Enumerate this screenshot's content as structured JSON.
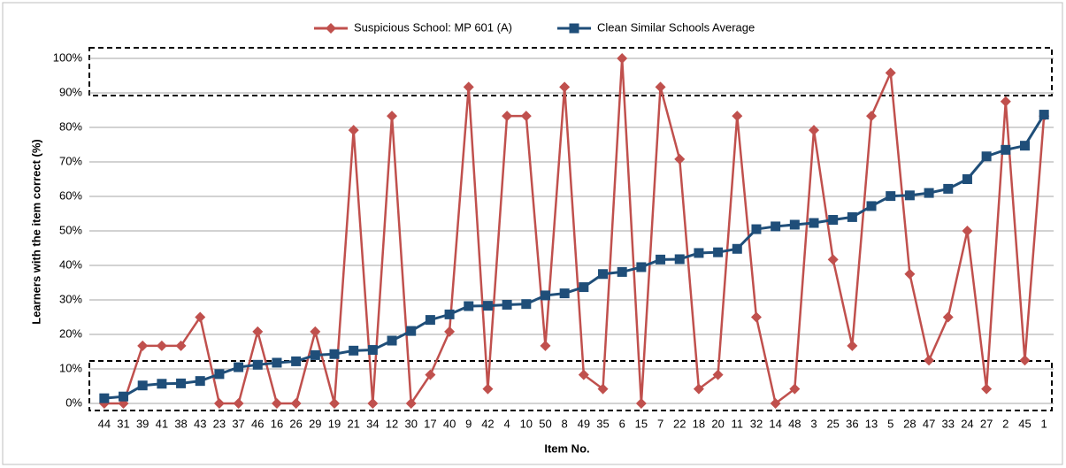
{
  "chart_data": {
    "type": "line",
    "y_label": "Learners with the item correct (%)",
    "x_label": "Item No.",
    "categories": [
      "44",
      "31",
      "39",
      "41",
      "38",
      "43",
      "23",
      "37",
      "46",
      "16",
      "26",
      "29",
      "19",
      "21",
      "34",
      "12",
      "30",
      "17",
      "40",
      "9",
      "42",
      "4",
      "10",
      "50",
      "8",
      "49",
      "35",
      "6",
      "15",
      "7",
      "22",
      "18",
      "20",
      "11",
      "32",
      "14",
      "48",
      "3",
      "25",
      "36",
      "13",
      "5",
      "28",
      "47",
      "33",
      "24",
      "27",
      "2",
      "45",
      "1"
    ],
    "series": [
      {
        "name": "Suspicious School: MP 601 (A)",
        "color": "#c0504d",
        "marker": "diamond",
        "values": [
          0,
          0,
          16.7,
          16.7,
          16.7,
          25,
          0,
          0,
          20.8,
          0,
          0,
          20.8,
          0,
          79.2,
          0,
          83.3,
          0,
          8.3,
          20.8,
          91.7,
          4.2,
          83.3,
          83.3,
          16.7,
          91.7,
          8.3,
          4.2,
          100,
          0,
          91.7,
          70.8,
          4.2,
          8.3,
          83.3,
          25,
          0,
          4.2,
          79.2,
          41.7,
          16.7,
          83.3,
          95.8,
          37.5,
          12.5,
          25,
          50,
          4.2,
          87.5,
          12.5,
          83.3
        ]
      },
      {
        "name": "Clean Similar Schools Average",
        "color": "#1f4e79",
        "marker": "square",
        "values": [
          1.5,
          2,
          5.2,
          5.7,
          5.8,
          6.5,
          8.5,
          10.5,
          11.2,
          11.8,
          12.2,
          14,
          14.3,
          15.3,
          15.5,
          18.2,
          21,
          24.2,
          25.8,
          28.2,
          28.3,
          28.6,
          28.8,
          31.3,
          31.9,
          33.7,
          37.5,
          38.1,
          39.5,
          41.7,
          41.8,
          43.6,
          43.8,
          44.8,
          50.5,
          51.3,
          51.8,
          52.3,
          53.2,
          54,
          57.2,
          60.1,
          60.3,
          61,
          62.2,
          65,
          71.6,
          73.5,
          74.7,
          83.7
        ]
      }
    ],
    "ylim": [
      0,
      100
    ],
    "yticks": [
      {
        "value": 0,
        "label": "0%"
      },
      {
        "value": 10,
        "label": "10%"
      },
      {
        "value": 20,
        "label": "20%"
      },
      {
        "value": 30,
        "label": "30%"
      },
      {
        "value": 40,
        "label": "40%"
      },
      {
        "value": 50,
        "label": "50%"
      },
      {
        "value": 60,
        "label": "60%"
      },
      {
        "value": 70,
        "label": "70%"
      },
      {
        "value": 80,
        "label": "80%"
      },
      {
        "value": 90,
        "label": "90%"
      },
      {
        "value": 100,
        "label": "100%"
      }
    ],
    "grid": true,
    "legend": "top"
  }
}
